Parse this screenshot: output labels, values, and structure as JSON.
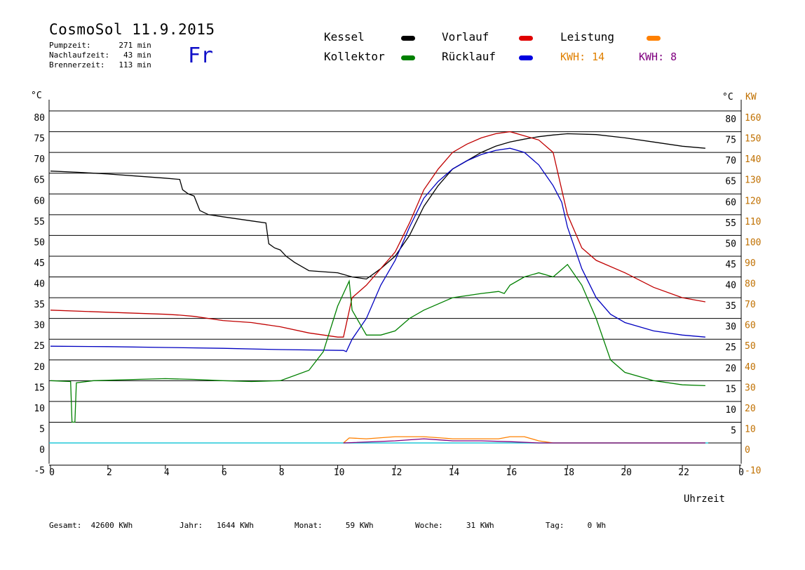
{
  "header": {
    "title": "CosmoSol 11.9.2015",
    "day": "Fr",
    "stats": [
      "Pumpzeit:      271 min",
      "Nachlaufzeit:   43 min",
      "Brennerzeit:   113 min"
    ]
  },
  "legend": {
    "items": [
      {
        "label": "Kessel",
        "color": "#000000"
      },
      {
        "label": "Vorlauf",
        "color": "#e00000"
      },
      {
        "label": "Leistung",
        "color": "#ff8000"
      },
      {
        "label": "Kollektor",
        "color": "#008000"
      },
      {
        "label": "Rücklauf",
        "color": "#0000e0"
      }
    ],
    "kwh_orange": "KWH: 14",
    "kwh_purple": "KWH: 8",
    "kwh_orange_color": "#e08000",
    "kwh_purple_color": "#800080"
  },
  "footer": {
    "gesamt": "Gesamt:  42600 KWh",
    "jahr": "Jahr:   1644 KWh",
    "monat": "Monat:     59 KWh",
    "woche": "Woche:     31 KWh",
    "tag": "Tag:     0 Wh"
  },
  "chart_data": {
    "type": "line",
    "xlabel": "Uhrzeit",
    "x_ticks": [
      "0",
      "2",
      "4",
      "6",
      "8",
      "10",
      "12",
      "14",
      "16",
      "18",
      "20",
      "22",
      "0"
    ],
    "xlim": [
      0,
      24
    ],
    "y_left_unit": "°C",
    "y_right_unit_temp": "°C",
    "y_right_unit_power": "KW",
    "y_left_ticks": [
      "80",
      "75",
      "70",
      "65",
      "60",
      "55",
      "50",
      "45",
      "40",
      "35",
      "30",
      "25",
      "20",
      "15",
      "10",
      "5",
      "0",
      "-5"
    ],
    "y_right_temp_ticks": [
      "80",
      "75",
      "70",
      "65",
      "60",
      "55",
      "50",
      "45",
      "40",
      "35",
      "30",
      "25",
      "20",
      "15",
      "10",
      "5"
    ],
    "y_right_power_ticks": [
      "160",
      "150",
      "140",
      "130",
      "120",
      "110",
      "100",
      "90",
      "80",
      "70",
      "60",
      "50",
      "40",
      "30",
      "20",
      "10",
      "0",
      "-10"
    ],
    "ylim": [
      -5,
      80
    ],
    "grid": true,
    "series": [
      {
        "name": "Kessel",
        "color": "#000000",
        "points": [
          [
            0,
            65.5
          ],
          [
            1,
            65.2
          ],
          [
            2,
            64.8
          ],
          [
            3,
            64.3
          ],
          [
            4,
            63.8
          ],
          [
            4.5,
            63.5
          ],
          [
            4.6,
            61
          ],
          [
            4.8,
            60
          ],
          [
            5,
            59.5
          ],
          [
            5.2,
            56
          ],
          [
            5.5,
            55
          ],
          [
            6,
            54.5
          ],
          [
            7,
            53.5
          ],
          [
            7.5,
            53
          ],
          [
            7.6,
            48
          ],
          [
            7.8,
            47
          ],
          [
            8,
            46.5
          ],
          [
            8.2,
            45
          ],
          [
            8.5,
            43.5
          ],
          [
            9,
            41.5
          ],
          [
            10,
            41
          ],
          [
            10.5,
            40
          ],
          [
            11,
            39.5
          ],
          [
            11.5,
            42
          ],
          [
            12,
            45
          ],
          [
            12.5,
            50
          ],
          [
            13,
            57
          ],
          [
            13.5,
            62
          ],
          [
            14,
            66
          ],
          [
            14.5,
            68
          ],
          [
            15,
            70
          ],
          [
            15.5,
            71.5
          ],
          [
            16,
            72.5
          ],
          [
            16.5,
            73.2
          ],
          [
            17,
            73.8
          ],
          [
            17.5,
            74.2
          ],
          [
            18,
            74.5
          ],
          [
            19,
            74.3
          ],
          [
            20,
            73.5
          ],
          [
            21,
            72.5
          ],
          [
            22,
            71.5
          ],
          [
            22.8,
            71
          ]
        ]
      },
      {
        "name": "Vorlauf",
        "color": "#c00000",
        "points": [
          [
            0,
            32
          ],
          [
            2,
            31.5
          ],
          [
            4,
            31
          ],
          [
            4.5,
            30.8
          ],
          [
            5,
            30.5
          ],
          [
            6,
            29.5
          ],
          [
            7,
            29
          ],
          [
            8,
            28
          ],
          [
            9,
            26.5
          ],
          [
            10,
            25.5
          ],
          [
            10.2,
            25.5
          ],
          [
            10.5,
            35
          ],
          [
            11,
            38
          ],
          [
            11.5,
            42
          ],
          [
            12,
            46
          ],
          [
            12.5,
            53
          ],
          [
            13,
            61
          ],
          [
            13.5,
            66
          ],
          [
            14,
            70
          ],
          [
            14.5,
            72
          ],
          [
            15,
            73.5
          ],
          [
            15.5,
            74.5
          ],
          [
            16,
            75
          ],
          [
            16.5,
            74
          ],
          [
            17,
            73
          ],
          [
            17.5,
            70
          ],
          [
            18,
            55
          ],
          [
            18.5,
            47
          ],
          [
            19,
            44
          ],
          [
            20,
            41
          ],
          [
            21,
            37.5
          ],
          [
            22,
            35
          ],
          [
            22.8,
            34
          ]
        ]
      },
      {
        "name": "Rücklauf",
        "color": "#0000c0",
        "points": [
          [
            0,
            23.3
          ],
          [
            2,
            23.2
          ],
          [
            4,
            23
          ],
          [
            6,
            22.8
          ],
          [
            8,
            22.5
          ],
          [
            10.2,
            22.3
          ],
          [
            10.3,
            22
          ],
          [
            10.5,
            25
          ],
          [
            11,
            30
          ],
          [
            11.5,
            38
          ],
          [
            12,
            44
          ],
          [
            12.5,
            52
          ],
          [
            13,
            59
          ],
          [
            13.5,
            63
          ],
          [
            14,
            66
          ],
          [
            14.5,
            68
          ],
          [
            15,
            69.5
          ],
          [
            15.5,
            70.5
          ],
          [
            16,
            71
          ],
          [
            16.5,
            70
          ],
          [
            17,
            67
          ],
          [
            17.5,
            62
          ],
          [
            17.8,
            58
          ],
          [
            18,
            52
          ],
          [
            18.5,
            42
          ],
          [
            19,
            35
          ],
          [
            19.5,
            31
          ],
          [
            20,
            29
          ],
          [
            21,
            27
          ],
          [
            22,
            26
          ],
          [
            22.8,
            25.5
          ]
        ]
      },
      {
        "name": "Kollektor",
        "color": "#008000",
        "points": [
          [
            0,
            15
          ],
          [
            0.7,
            14.8
          ],
          [
            0.75,
            5
          ],
          [
            0.85,
            5
          ],
          [
            0.9,
            14.5
          ],
          [
            1.5,
            15
          ],
          [
            3,
            15.3
          ],
          [
            4,
            15.5
          ],
          [
            5,
            15.3
          ],
          [
            6,
            15
          ],
          [
            7,
            14.8
          ],
          [
            8,
            15
          ],
          [
            9,
            17.5
          ],
          [
            9.5,
            22
          ],
          [
            10,
            33
          ],
          [
            10.4,
            39
          ],
          [
            10.5,
            32
          ],
          [
            11,
            26
          ],
          [
            11.5,
            26
          ],
          [
            12,
            27
          ],
          [
            12.5,
            30
          ],
          [
            13,
            32
          ],
          [
            14,
            35
          ],
          [
            15,
            36
          ],
          [
            15.6,
            36.5
          ],
          [
            15.8,
            36
          ],
          [
            16,
            38
          ],
          [
            16.5,
            40
          ],
          [
            17,
            41
          ],
          [
            17.5,
            40
          ],
          [
            18,
            43
          ],
          [
            18.5,
            38
          ],
          [
            19,
            30
          ],
          [
            19.5,
            20
          ],
          [
            20,
            17
          ],
          [
            21,
            15
          ],
          [
            22,
            14
          ],
          [
            22.8,
            13.8
          ]
        ]
      },
      {
        "name": "Leistung",
        "color": "#ff8000",
        "points": [
          [
            10.2,
            0
          ],
          [
            10.4,
            1.2
          ],
          [
            11,
            1
          ],
          [
            12,
            1.5
          ],
          [
            13,
            1.5
          ],
          [
            14,
            1
          ],
          [
            15,
            1
          ],
          [
            15.6,
            1
          ],
          [
            16,
            1.5
          ],
          [
            16.5,
            1.5
          ],
          [
            17,
            0.5
          ],
          [
            17.5,
            0
          ],
          [
            22.8,
            0
          ]
        ]
      },
      {
        "name": "KWH purple",
        "color": "#800080",
        "points": [
          [
            10.2,
            0
          ],
          [
            12,
            0.5
          ],
          [
            13,
            1
          ],
          [
            14,
            0.5
          ],
          [
            15,
            0.5
          ],
          [
            16,
            0.3
          ],
          [
            17,
            0
          ],
          [
            22.8,
            0
          ]
        ]
      }
    ]
  }
}
